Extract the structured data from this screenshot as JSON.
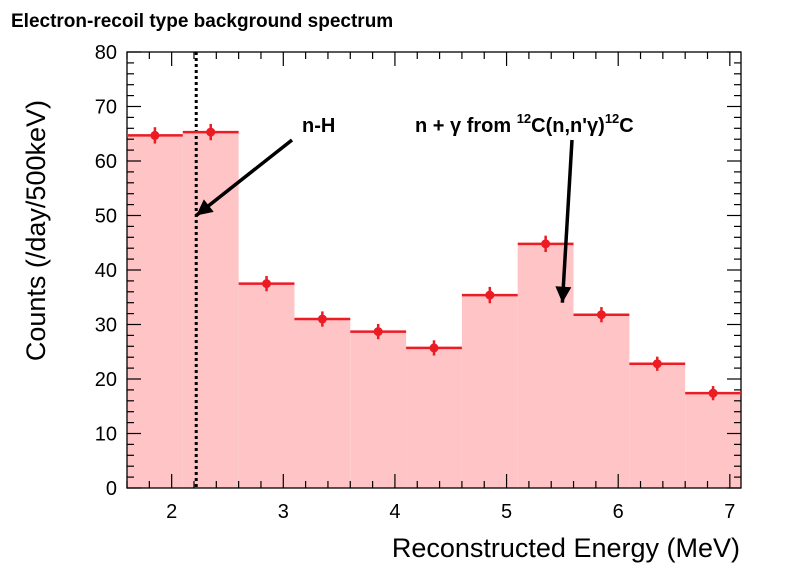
{
  "chart_data": {
    "type": "bar",
    "title": "Electron-recoil type background spectrum",
    "xlabel": "Reconstructed Energy (MeV)",
    "ylabel": "Counts (/day/500keV)",
    "xlim": [
      1.6,
      7.1
    ],
    "ylim": [
      0,
      80
    ],
    "xticks": [
      "2",
      "3",
      "4",
      "5",
      "6",
      "7"
    ],
    "yticks": [
      "0",
      "10",
      "20",
      "30",
      "40",
      "50",
      "60",
      "70",
      "80"
    ],
    "bin_edges": [
      1.6,
      2.1,
      2.6,
      3.1,
      3.6,
      4.1,
      4.6,
      5.1,
      5.6,
      6.1,
      6.6,
      7.1
    ],
    "series": [
      {
        "x": [
          1.85,
          2.35,
          2.85,
          3.35,
          3.85,
          4.35,
          4.85,
          5.35,
          5.85,
          6.35,
          6.85
        ],
        "values": [
          64.7,
          65.3,
          37.5,
          31.0,
          28.7,
          25.7,
          35.4,
          44.8,
          31.8,
          22.8,
          17.4
        ],
        "errors": [
          1.5,
          1.5,
          1.4,
          1.4,
          1.4,
          1.4,
          1.5,
          1.5,
          1.4,
          1.3,
          1.3
        ]
      }
    ],
    "vline_x": 2.22,
    "annotations": [
      {
        "text": "n-H",
        "target": [
          2.22,
          50
        ]
      },
      {
        "text_main": "n + γ from ",
        "sup1": "12",
        "text_mid": "C(n,n'γ)",
        "sup2": "12",
        "text_end": "C",
        "target": [
          5.5,
          34
        ]
      }
    ],
    "colors": {
      "fill": "#ffc4c6",
      "marker": "#ec1c24",
      "axis": "#000000"
    }
  }
}
